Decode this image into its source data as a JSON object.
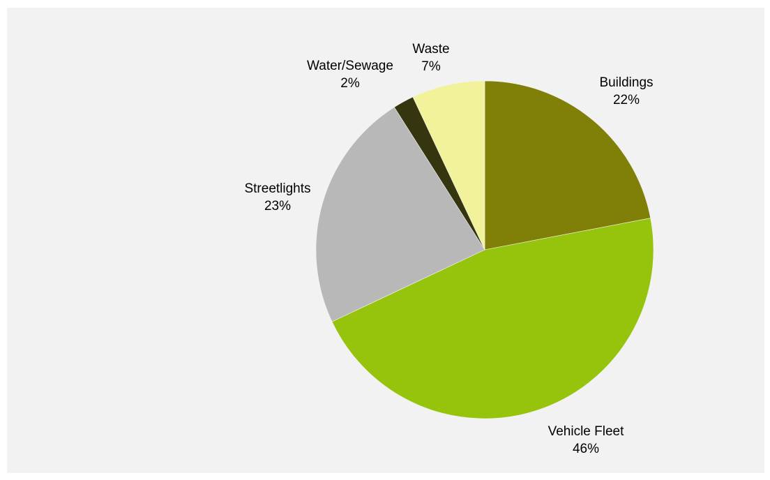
{
  "chart_data": {
    "type": "pie",
    "title": "",
    "start_angle_deg": 0,
    "direction": "clockwise",
    "slices": [
      {
        "label": "Buildings",
        "value": 22,
        "value_label": "22%",
        "color": "#808009"
      },
      {
        "label": "Vehicle Fleet",
        "value": 46,
        "value_label": "46%",
        "color": "#96c30c"
      },
      {
        "label": "Streetlights",
        "value": 23,
        "value_label": "23%",
        "color": "#b8b8b8"
      },
      {
        "label": "Water/Sewage",
        "value": 2,
        "value_label": "2%",
        "color": "#35350f"
      },
      {
        "label": "Waste",
        "value": 7,
        "value_label": "7%",
        "color": "#f2f29a"
      }
    ],
    "background_color": "#f2f2f2",
    "legend": "none",
    "data_labels": "category name and percentage, outside slices"
  }
}
